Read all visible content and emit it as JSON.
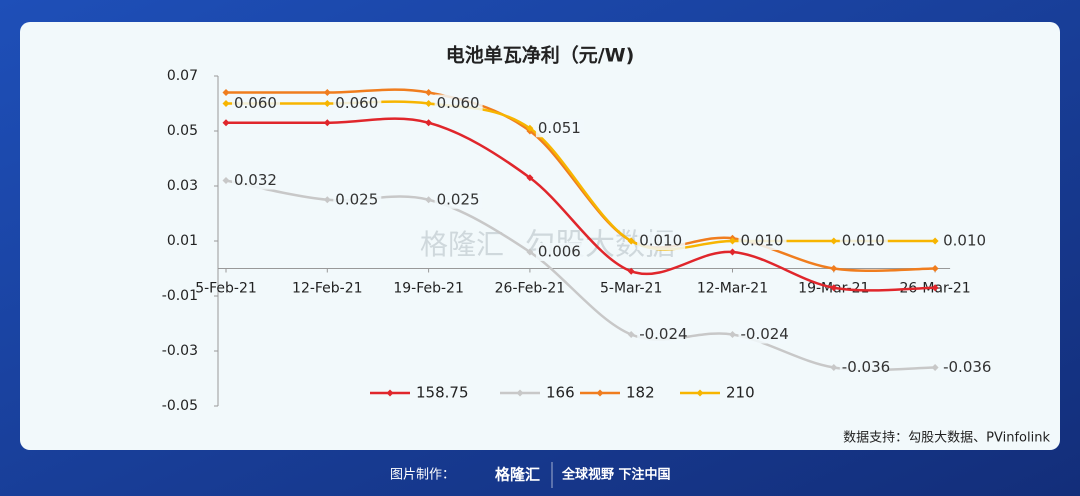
{
  "chart_data": {
    "type": "line",
    "title": "电池单瓦净利（元/W)",
    "categories": [
      "5-Feb-21",
      "12-Feb-21",
      "19-Feb-21",
      "26-Feb-21",
      "5-Mar-21",
      "12-Mar-21",
      "19-Mar-21",
      "26-Mar-21"
    ],
    "series": [
      {
        "name": "158.75",
        "color": "#e0262b",
        "values": [
          0.053,
          0.053,
          0.053,
          0.033,
          -0.001,
          0.006,
          -0.007,
          -0.007
        ]
      },
      {
        "name": "166",
        "color": "#c8c8c8",
        "values": [
          0.032,
          0.025,
          0.025,
          0.006,
          -0.024,
          -0.024,
          -0.036,
          -0.036
        ],
        "value_labels": [
          "0.032",
          "0.025",
          "0.025",
          "0.006",
          "-0.024",
          "-0.024",
          "-0.036",
          "-0.036"
        ]
      },
      {
        "name": "182",
        "color": "#f07d1e",
        "values": [
          0.064,
          0.064,
          0.064,
          0.05,
          0.01,
          0.011,
          0,
          0
        ]
      },
      {
        "name": "210",
        "color": "#f7b500",
        "values": [
          0.06,
          0.06,
          0.06,
          0.051,
          0.01,
          0.01,
          0.01,
          0.01
        ],
        "value_labels": [
          "0.060",
          "0.060",
          "0.060",
          "0.051",
          "0.010",
          "0.010",
          "0.010",
          "0.010"
        ]
      }
    ],
    "ylim": [
      -0.05,
      0.07
    ],
    "yticks": [
      0.07,
      0.05,
      0.03,
      0.01,
      -0.01,
      -0.03,
      -0.05
    ],
    "grid": false,
    "legend": "bottom"
  },
  "source": "数据支持：勾股大数据、PVinfolink",
  "watermark": {
    "brand": "格隆汇",
    "partner": "勾股大数据"
  },
  "footer": {
    "label": "图片制作：",
    "brand": "格隆汇",
    "slogan": "全球视野 下注中国"
  }
}
